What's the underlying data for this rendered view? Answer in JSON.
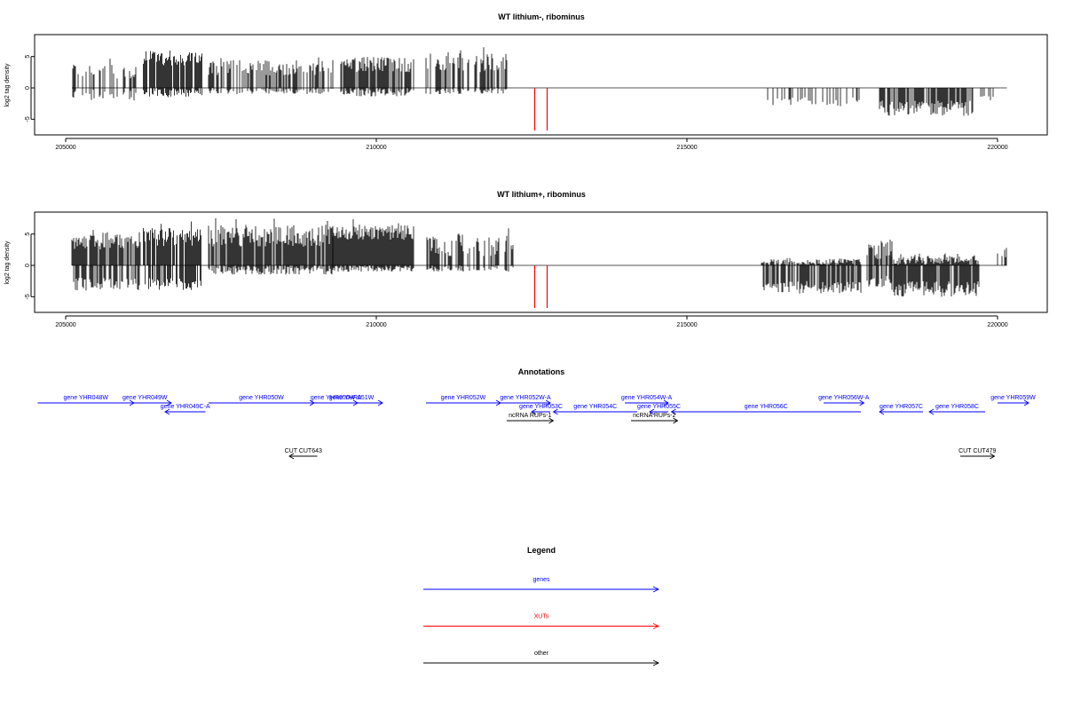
{
  "chart_data": [
    {
      "type": "bar",
      "title": "WT lithium-, ribominus",
      "ylabel": "log2 tag density",
      "xlim": [
        204500,
        220800
      ],
      "ylim": [
        -7.5,
        8.5
      ],
      "xticks": [
        "205000",
        "210000",
        "215000",
        "220000"
      ],
      "yticks": [
        "5",
        "0",
        "-5"
      ],
      "clusters": [
        {
          "x0": 205100,
          "x1": 206200,
          "pos": [
            1.5,
            4.0
          ],
          "neg": [
            0.3,
            2.0
          ],
          "density": 0.4
        },
        {
          "x0": 206250,
          "x1": 207200,
          "pos": [
            3.5,
            6.0
          ],
          "neg": [
            0.2,
            1.5
          ],
          "density": 0.9
        },
        {
          "x0": 207300,
          "x1": 209300,
          "pos": [
            2.0,
            4.5
          ],
          "neg": [
            0.1,
            1.0
          ],
          "density": 0.6
        },
        {
          "x0": 209400,
          "x1": 210600,
          "pos": [
            2.5,
            5.0
          ],
          "neg": [
            0.2,
            1.5
          ],
          "density": 0.7
        },
        {
          "x0": 210800,
          "x1": 212100,
          "pos": [
            2.5,
            5.5
          ],
          "neg": [
            0.1,
            1.0
          ],
          "density": 0.7
        },
        {
          "x0": 216200,
          "x1": 217800,
          "pos": [
            0.0,
            0.0
          ],
          "neg": [
            1.5,
            3.0
          ],
          "density": 0.35
        },
        {
          "x0": 218100,
          "x1": 219600,
          "pos": [
            0.0,
            0.0
          ],
          "neg": [
            2.0,
            4.5
          ],
          "density": 0.9
        },
        {
          "x0": 219600,
          "x1": 220000,
          "pos": [
            0.0,
            0.0
          ],
          "neg": [
            1.0,
            2.0
          ],
          "density": 0.25
        }
      ],
      "xut_markers": [
        212550,
        212750
      ],
      "xut_marker_depth": -6.8
    },
    {
      "type": "bar",
      "title": "WT lithium+, ribominus",
      "ylabel": "log2 tag density",
      "xlim": [
        204500,
        220800
      ],
      "ylim": [
        -7.5,
        8.5
      ],
      "xticks": [
        "205000",
        "210000",
        "215000",
        "220000"
      ],
      "yticks": [
        "5",
        "0",
        "-5"
      ],
      "clusters": [
        {
          "x0": 205100,
          "x1": 206200,
          "pos": [
            2.5,
            5.0
          ],
          "neg": [
            2.0,
            4.0
          ],
          "density": 0.9
        },
        {
          "x0": 206250,
          "x1": 207200,
          "pos": [
            3.0,
            6.0
          ],
          "neg": [
            2.0,
            4.0
          ],
          "density": 0.9
        },
        {
          "x0": 207300,
          "x1": 209300,
          "pos": [
            3.0,
            6.5
          ],
          "neg": [
            0.1,
            1.5
          ],
          "density": 0.9
        },
        {
          "x0": 209300,
          "x1": 210600,
          "pos": [
            4.0,
            6.5
          ],
          "neg": [
            0.1,
            1.0
          ],
          "density": 1.0
        },
        {
          "x0": 210800,
          "x1": 212200,
          "pos": [
            1.5,
            5.0
          ],
          "neg": [
            0.1,
            1.0
          ],
          "density": 0.55
        },
        {
          "x0": 216200,
          "x1": 217800,
          "pos": [
            0.1,
            1.0
          ],
          "neg": [
            2.5,
            4.5
          ],
          "density": 0.9
        },
        {
          "x0": 217900,
          "x1": 218300,
          "pos": [
            1.0,
            3.5
          ],
          "neg": [
            1.5,
            3.5
          ],
          "density": 0.8
        },
        {
          "x0": 218300,
          "x1": 219700,
          "pos": [
            0.1,
            1.5
          ],
          "neg": [
            2.5,
            5.0
          ],
          "density": 1.0
        },
        {
          "x0": 220000,
          "x1": 220150,
          "pos": [
            1.0,
            3.0
          ],
          "neg": [
            0.0,
            0.0
          ],
          "density": 0.6
        }
      ],
      "xut_markers": [
        212550,
        212750
      ],
      "xut_marker_depth": -6.8
    }
  ],
  "annotations": {
    "title": "Annotations",
    "xlim": [
      204500,
      220800
    ],
    "items": [
      {
        "label": "gene YHR048W",
        "x0": 204550,
        "x1": 206100,
        "dir": "right",
        "row": 0,
        "color": "#0000ff"
      },
      {
        "label": "gene YHR049W",
        "x0": 205850,
        "x1": 206700,
        "dir": "right",
        "row": 0,
        "color": "#0000ff"
      },
      {
        "label": "gene YHR049C-A",
        "x0": 206600,
        "x1": 207250,
        "dir": "left",
        "row": 1,
        "color": "#0000ff"
      },
      {
        "label": "gene YHR050W",
        "x0": 207300,
        "x1": 209000,
        "dir": "right",
        "row": 0,
        "color": "#0000ff"
      },
      {
        "label": "gene YHR050W-A",
        "x0": 209000,
        "x1": 209700,
        "dir": "right",
        "row": 0,
        "color": "#0000ff"
      },
      {
        "label": "gene YHR051W",
        "x0": 209100,
        "x1": 210100,
        "dir": "right",
        "row": 0,
        "color": "#0000ff"
      },
      {
        "label": "gene YHR052W",
        "x0": 210800,
        "x1": 212000,
        "dir": "right",
        "row": 0,
        "color": "#0000ff"
      },
      {
        "label": "gene YHR052W-A",
        "x0": 212000,
        "x1": 212800,
        "dir": "right",
        "row": 0,
        "color": "#0000ff"
      },
      {
        "label": "gene YHR053C",
        "x0": 212500,
        "x1": 212800,
        "dir": "left",
        "row": 1,
        "color": "#0000ff"
      },
      {
        "label": "gene YHR054C",
        "x0": 212850,
        "x1": 214200,
        "dir": "left",
        "row": 1,
        "color": "#0000ff"
      },
      {
        "label": "gene YHR054W-A",
        "x0": 214000,
        "x1": 214700,
        "dir": "right",
        "row": 0,
        "color": "#0000ff"
      },
      {
        "label": "gene YHR055C",
        "x0": 214400,
        "x1": 214700,
        "dir": "left",
        "row": 1,
        "color": "#0000ff"
      },
      {
        "label": "gene YHR056C",
        "x0": 214750,
        "x1": 217800,
        "dir": "left",
        "row": 1,
        "color": "#0000ff"
      },
      {
        "label": "gene YHR056W-A",
        "x0": 217200,
        "x1": 217850,
        "dir": "right",
        "row": 0,
        "color": "#0000ff"
      },
      {
        "label": "gene YHR057C",
        "x0": 218100,
        "x1": 218800,
        "dir": "left",
        "row": 1,
        "color": "#0000ff"
      },
      {
        "label": "gene YHR058C",
        "x0": 218900,
        "x1": 219800,
        "dir": "left",
        "row": 1,
        "color": "#0000ff"
      },
      {
        "label": "gene YHR059W",
        "x0": 220000,
        "x1": 220500,
        "dir": "right",
        "row": 0,
        "color": "#0000ff"
      },
      {
        "label": "ncRNA RUPs-1",
        "x0": 212100,
        "x1": 212850,
        "dir": "right",
        "row": 2,
        "color": "#000000"
      },
      {
        "label": "ncRNA RUPs-2",
        "x0": 214100,
        "x1": 214850,
        "dir": "right",
        "row": 2,
        "color": "#000000"
      },
      {
        "label": "CUT CUT643",
        "x0": 208600,
        "x1": 209050,
        "dir": "left",
        "row": 6,
        "color": "#000000"
      },
      {
        "label": "CUT CUT479",
        "x0": 219400,
        "x1": 219950,
        "dir": "right",
        "row": 6,
        "color": "#000000"
      }
    ]
  },
  "legend": {
    "title": "Legend",
    "entries": [
      {
        "label": "genes",
        "color": "#0000ff"
      },
      {
        "label": "XUTs",
        "color": "#ff0000"
      },
      {
        "label": "other",
        "color": "#000000"
      }
    ]
  }
}
